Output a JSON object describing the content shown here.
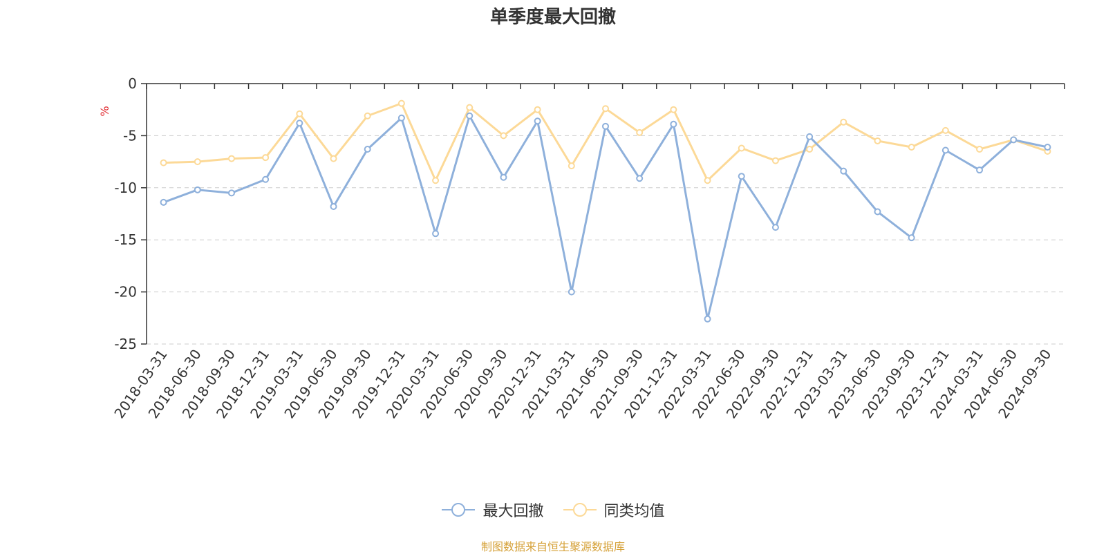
{
  "chart_data": {
    "type": "line",
    "title": "单季度最大回撤",
    "ylabel": "%",
    "xlabel": "",
    "ylim": [
      -25,
      0
    ],
    "yticks": [
      0,
      -5,
      -10,
      -15,
      -20,
      -25
    ],
    "grid": true,
    "legend_position": "bottom",
    "categories": [
      "2018-03-31",
      "2018-06-30",
      "2018-09-30",
      "2018-12-31",
      "2019-03-31",
      "2019-06-30",
      "2019-09-30",
      "2019-12-31",
      "2020-03-31",
      "2020-06-30",
      "2020-09-30",
      "2020-12-31",
      "2021-03-31",
      "2021-06-30",
      "2021-09-30",
      "2021-12-31",
      "2022-03-31",
      "2022-06-30",
      "2022-09-30",
      "2022-12-31",
      "2023-03-31",
      "2023-06-30",
      "2023-09-30",
      "2023-12-31",
      "2024-03-31",
      "2024-06-30",
      "2024-09-30"
    ],
    "series": [
      {
        "name": "最大回撤",
        "color": "#8eb0db",
        "values": [
          -11.4,
          -10.2,
          -10.5,
          -9.2,
          -3.8,
          -11.8,
          -6.3,
          -3.3,
          -14.4,
          -3.1,
          -9.0,
          -3.6,
          -20.0,
          -4.1,
          -9.1,
          -3.9,
          -22.6,
          -8.9,
          -13.8,
          -5.1,
          -8.4,
          -12.3,
          -14.8,
          -6.4,
          -8.3,
          -5.4,
          -6.1
        ]
      },
      {
        "name": "同类均值",
        "color": "#fcd997",
        "values": [
          -7.6,
          -7.5,
          -7.2,
          -7.1,
          -2.9,
          -7.2,
          -3.1,
          -1.9,
          -9.3,
          -2.3,
          -5.0,
          -2.5,
          -7.9,
          -2.4,
          -4.7,
          -2.5,
          -9.3,
          -6.2,
          -7.4,
          -6.3,
          -3.7,
          -5.5,
          -6.1,
          -4.5,
          -6.3,
          -5.4,
          -6.5
        ]
      }
    ]
  },
  "footer": {
    "source_text": "制图数据来自恒生聚源数据库"
  }
}
